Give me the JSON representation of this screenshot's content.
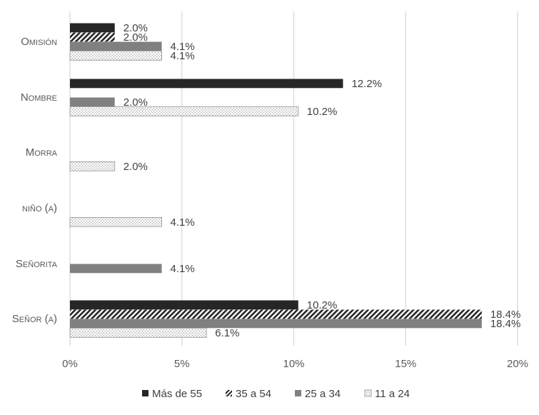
{
  "chart_data": {
    "type": "bar",
    "orientation": "horizontal",
    "categories": [
      "Omisión",
      "Nombre",
      "Morra",
      "niño (a)",
      "Señorita",
      "Señor (a)"
    ],
    "series": [
      {
        "name": "Más de 55",
        "values": [
          2.0,
          12.2,
          null,
          null,
          null,
          10.2
        ],
        "pattern": "solid-dark"
      },
      {
        "name": "35 a 54",
        "values": [
          2.0,
          null,
          null,
          null,
          null,
          18.4
        ],
        "pattern": "diagonal-hatch"
      },
      {
        "name": "25 a 34",
        "values": [
          4.1,
          2.0,
          null,
          null,
          4.1,
          18.4
        ],
        "pattern": "solid-gray"
      },
      {
        "name": "11 a 24",
        "values": [
          4.1,
          10.2,
          2.0,
          4.1,
          null,
          6.1
        ],
        "pattern": "dotted"
      }
    ],
    "xlim": [
      0,
      20
    ],
    "xticks": [
      "0%",
      "5%",
      "10%",
      "15%",
      "20%"
    ],
    "value_suffix": "%",
    "grid": true,
    "legend_position": "bottom",
    "colors": {
      "dark": "#262626",
      "gray": "#808080",
      "light_fill": "#f2f2f2",
      "grid": "#d9d9d9",
      "outline": "#a6a6a6"
    }
  }
}
